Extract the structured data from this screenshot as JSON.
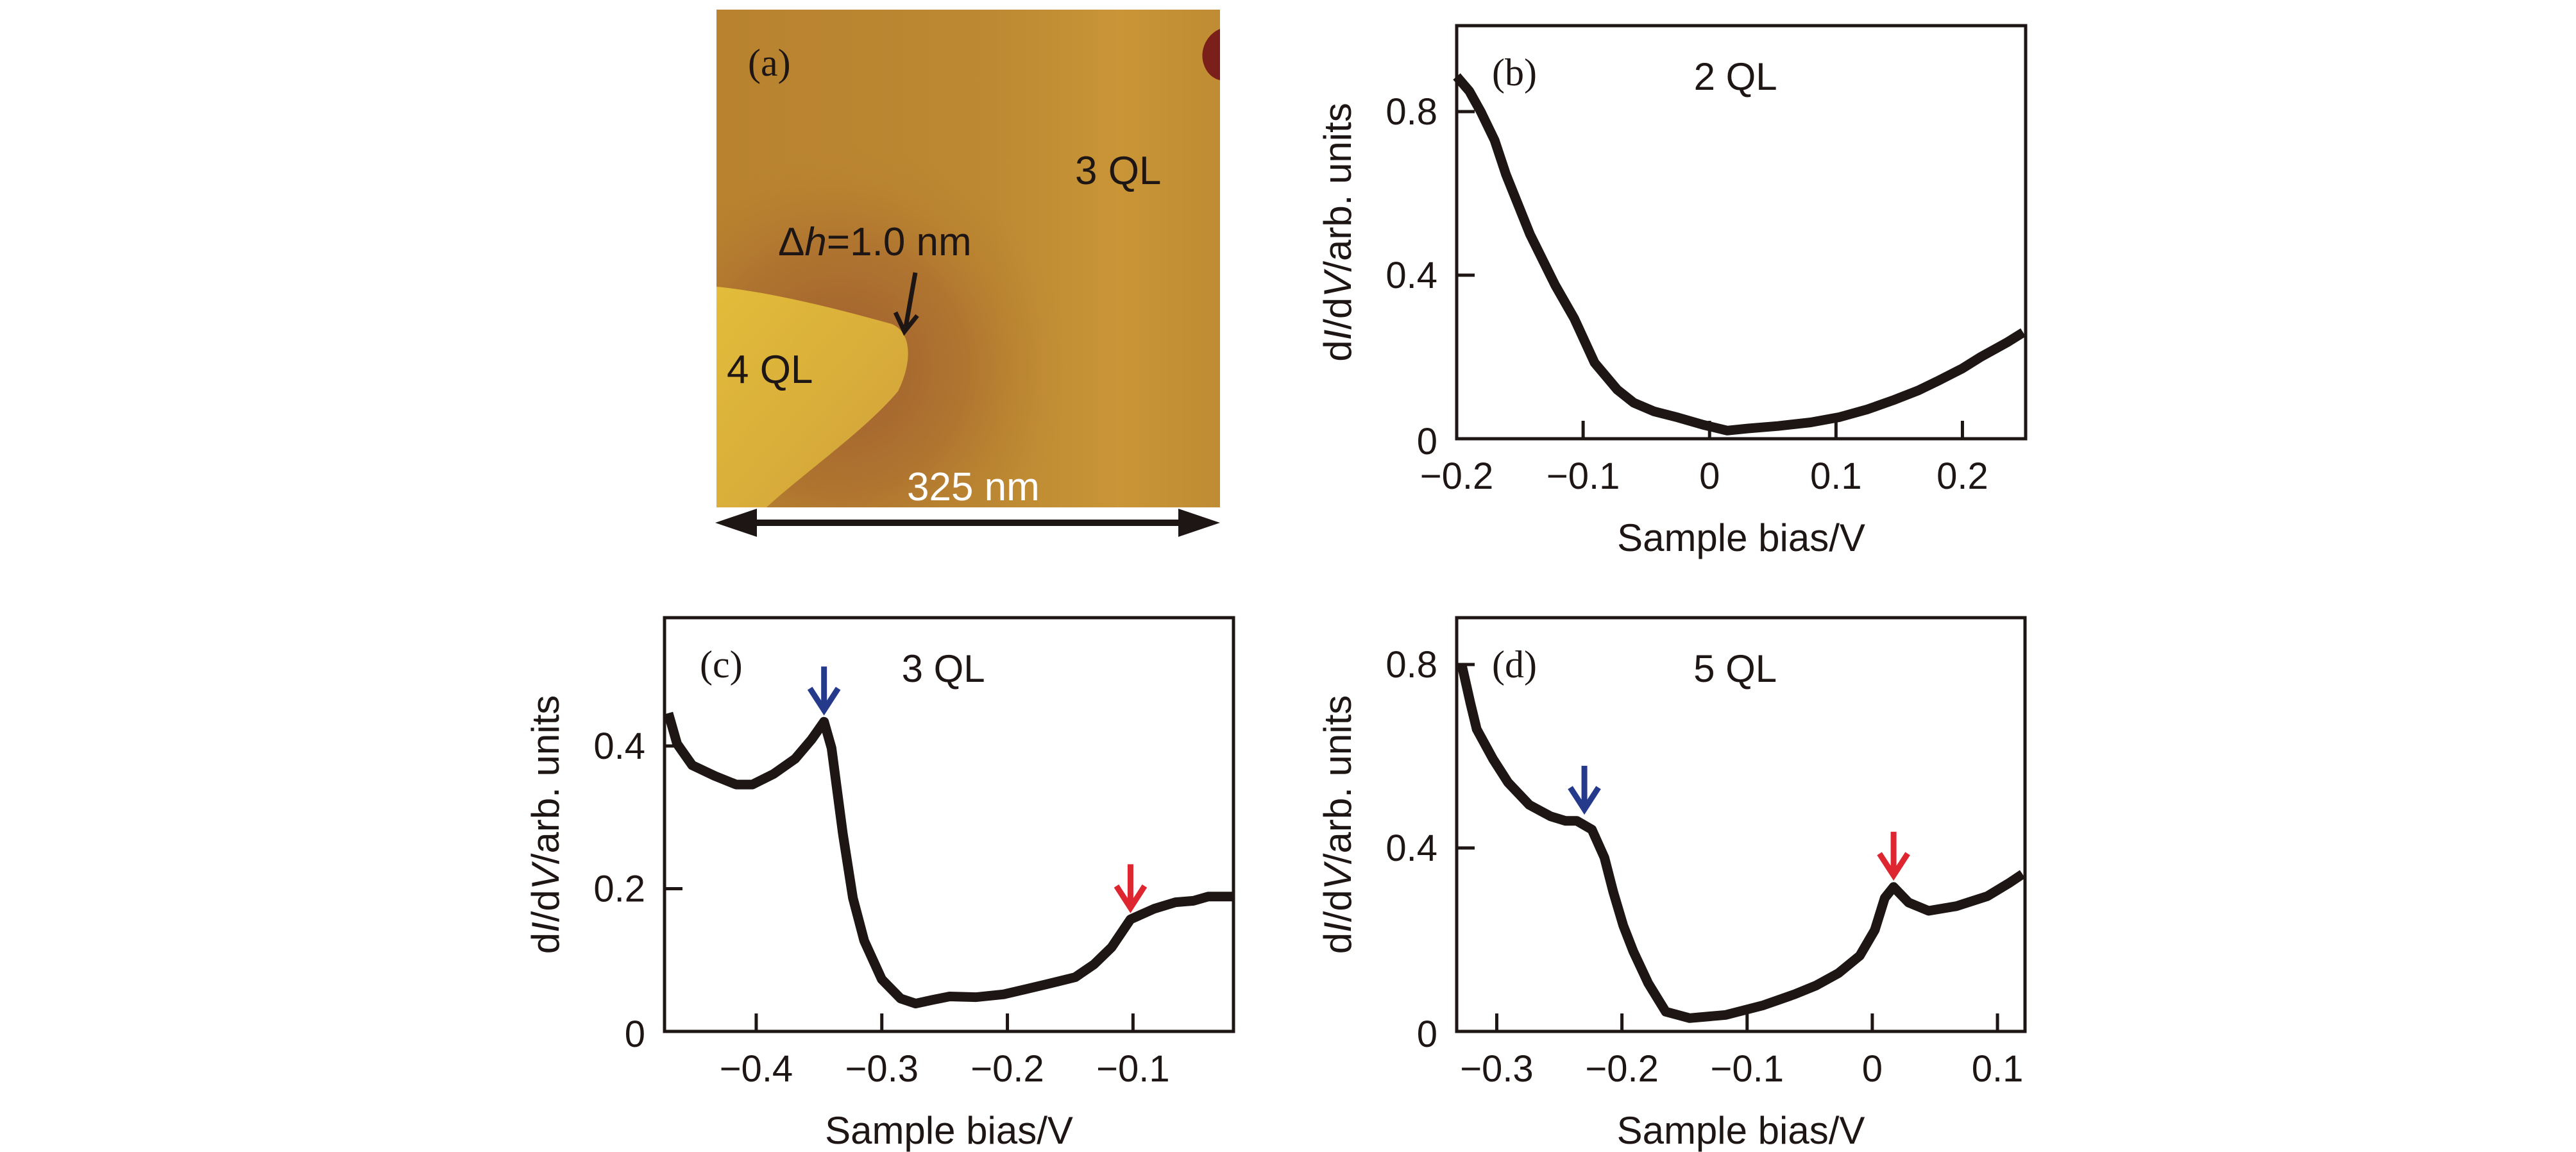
{
  "figure": {
    "afm_panel": {
      "tag": "(a)",
      "labels": {
        "upper_terrace": "3 QL",
        "lower_terrace": "4 QL"
      },
      "step_annotation": {
        "symbol": "Δ",
        "variable": "h",
        "value_text": "=1.0 nm"
      },
      "scale_bar": "325 nm",
      "colors": {
        "base": "#B8832F",
        "bright_terrace": "#D9AE38",
        "dark_trench": "#9C5A2E",
        "defect": "#7A1F1A",
        "right_strip": "#C99537"
      }
    },
    "colors": {
      "curve": "#1e1614",
      "blue_arrow": "#263a8c",
      "red_arrow": "#dd2630"
    }
  },
  "chart_data": [
    {
      "id": "b",
      "type": "line",
      "tag": "(b)",
      "title": "2 QL",
      "xlabel": "Sample bias/V",
      "ylabel": {
        "prefix": "d",
        "italic1": "I",
        "mid": "/d",
        "italic2": "V",
        "suffix": "/arb. units"
      },
      "xlim": [
        -0.2,
        0.25
      ],
      "ylim": [
        0,
        1.0
      ],
      "xticks": [
        -0.2,
        -0.1,
        0,
        0.1,
        0.2
      ],
      "xtick_labels": [
        "−0.2",
        "−0.1",
        "0",
        "0.1",
        "0.2"
      ],
      "yticks": [
        0,
        0.4,
        0.8
      ],
      "ytick_labels": [
        "0",
        "0.4",
        "0.8"
      ],
      "grid": false,
      "arrows": [],
      "series": [
        {
          "name": "2 QL",
          "x": [
            -0.2,
            -0.19,
            -0.181,
            -0.17,
            -0.161,
            -0.142,
            -0.122,
            -0.107,
            -0.091,
            -0.073,
            -0.06,
            -0.044,
            -0.025,
            -0.005,
            0.014,
            0.03,
            0.054,
            0.08,
            0.103,
            0.125,
            0.146,
            0.165,
            0.181,
            0.2,
            0.214,
            0.235,
            0.248
          ],
          "y": [
            0.886,
            0.85,
            0.8,
            0.73,
            0.646,
            0.5,
            0.375,
            0.294,
            0.186,
            0.12,
            0.088,
            0.067,
            0.052,
            0.034,
            0.02,
            0.025,
            0.031,
            0.04,
            0.053,
            0.072,
            0.095,
            0.118,
            0.142,
            0.172,
            0.199,
            0.235,
            0.26
          ]
        }
      ]
    },
    {
      "id": "c",
      "type": "line",
      "tag": "(c)",
      "title": "3 QL",
      "xlabel": "Sample bias/V",
      "ylabel": {
        "prefix": "d",
        "italic1": "I",
        "mid": "/d",
        "italic2": "V",
        "suffix": "/arb. units"
      },
      "xlim": [
        -0.473,
        -0.02
      ],
      "ylim": [
        0,
        0.58
      ],
      "xticks": [
        -0.4,
        -0.3,
        -0.2,
        -0.1
      ],
      "xtick_labels": [
        "−0.4",
        "−0.3",
        "−0.2",
        "−0.1"
      ],
      "yticks": [
        0,
        0.2,
        0.4
      ],
      "ytick_labels": [
        "0",
        "0.2",
        "0.4"
      ],
      "grid": false,
      "arrows": [
        {
          "color": "blue",
          "x": -0.346,
          "y": 0.434
        },
        {
          "color": "red",
          "x": -0.102,
          "y": 0.157
        }
      ],
      "series": [
        {
          "name": "3 QL",
          "x": [
            -0.47,
            -0.463,
            -0.451,
            -0.433,
            -0.416,
            -0.403,
            -0.386,
            -0.369,
            -0.356,
            -0.346,
            -0.34,
            -0.331,
            -0.323,
            -0.314,
            -0.3,
            -0.285,
            -0.273,
            -0.26,
            -0.246,
            -0.225,
            -0.203,
            -0.186,
            -0.169,
            -0.146,
            -0.131,
            -0.117,
            -0.102,
            -0.083,
            -0.066,
            -0.052,
            -0.04,
            -0.021
          ],
          "y": [
            0.446,
            0.403,
            0.373,
            0.358,
            0.346,
            0.346,
            0.361,
            0.382,
            0.409,
            0.434,
            0.397,
            0.277,
            0.187,
            0.127,
            0.073,
            0.046,
            0.039,
            0.044,
            0.049,
            0.048,
            0.052,
            0.059,
            0.066,
            0.076,
            0.094,
            0.118,
            0.157,
            0.172,
            0.181,
            0.183,
            0.189,
            0.189
          ]
        }
      ]
    },
    {
      "id": "d",
      "type": "line",
      "tag": "(d)",
      "title": "5 QL",
      "xlabel": "Sample bias/V",
      "ylabel": {
        "prefix": "d",
        "italic1": "I",
        "mid": "/d",
        "italic2": "V",
        "suffix": "/arb. units"
      },
      "xlim": [
        -0.332,
        0.122
      ],
      "ylim": [
        0,
        0.9
      ],
      "xticks": [
        -0.3,
        -0.2,
        -0.1,
        0,
        0.1
      ],
      "xtick_labels": [
        "−0.3",
        "−0.2",
        "−0.1",
        "0",
        "0.1"
      ],
      "yticks": [
        0,
        0.4,
        0.8
      ],
      "ytick_labels": [
        "0",
        "0.4",
        "0.8"
      ],
      "grid": false,
      "arrows": [
        {
          "color": "blue",
          "x": -0.23,
          "y": 0.459
        },
        {
          "color": "red",
          "x": 0.017,
          "y": 0.315
        }
      ],
      "series": [
        {
          "name": "5 QL",
          "x": [
            -0.328,
            -0.321,
            -0.316,
            -0.303,
            -0.291,
            -0.274,
            -0.257,
            -0.245,
            -0.236,
            -0.224,
            -0.214,
            -0.207,
            -0.199,
            -0.191,
            -0.179,
            -0.165,
            -0.146,
            -0.117,
            -0.087,
            -0.062,
            -0.045,
            -0.027,
            -0.01,
            0.002,
            0.01,
            0.017,
            0.029,
            0.045,
            0.067,
            0.092,
            0.109,
            0.12
          ],
          "y": [
            0.8,
            0.715,
            0.659,
            0.594,
            0.543,
            0.494,
            0.469,
            0.459,
            0.459,
            0.44,
            0.379,
            0.305,
            0.231,
            0.175,
            0.105,
            0.043,
            0.029,
            0.036,
            0.057,
            0.081,
            0.1,
            0.127,
            0.165,
            0.221,
            0.291,
            0.315,
            0.281,
            0.263,
            0.273,
            0.295,
            0.323,
            0.343
          ]
        }
      ]
    }
  ]
}
